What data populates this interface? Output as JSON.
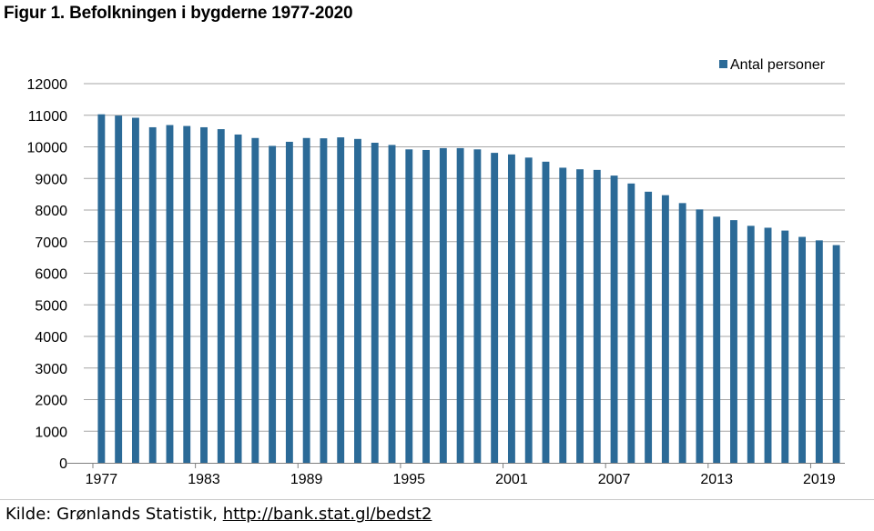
{
  "figure": {
    "title": "Figur 1. Befolkningen i bygderne 1977-2020"
  },
  "source": {
    "prefix": "Kilde: Grønlands Statistik, ",
    "link_text": "http://bank.stat.gl/bedst2"
  },
  "chart_data": {
    "type": "bar",
    "title": "Figur 1. Befolkningen i bygderne 1977-2020",
    "xlabel": "",
    "ylabel": "",
    "ylim": [
      0,
      12000
    ],
    "yticks": [
      0,
      1000,
      2000,
      3000,
      4000,
      5000,
      6000,
      7000,
      8000,
      9000,
      10000,
      11000,
      12000
    ],
    "xtick_labels": [
      "1977",
      "1983",
      "1989",
      "1995",
      "2001",
      "2007",
      "2013",
      "2019"
    ],
    "grid": true,
    "legend_position": "top-right",
    "color": "#2b6a97",
    "series": [
      {
        "name": "Antal personer",
        "values": [
          11030,
          10990,
          10920,
          10620,
          10690,
          10660,
          10620,
          10560,
          10390,
          10280,
          10030,
          10160,
          10280,
          10270,
          10300,
          10250,
          10130,
          10060,
          9920,
          9900,
          9960,
          9960,
          9920,
          9810,
          9760,
          9660,
          9530,
          9340,
          9290,
          9270,
          9090,
          8840,
          8580,
          8470,
          8220,
          8020,
          7790,
          7680,
          7500,
          7440,
          7350,
          7150,
          7040,
          6890
        ]
      }
    ],
    "categories": [
      "1977",
      "1978",
      "1979",
      "1980",
      "1981",
      "1982",
      "1983",
      "1984",
      "1985",
      "1986",
      "1987",
      "1988",
      "1989",
      "1990",
      "1991",
      "1992",
      "1993",
      "1994",
      "1995",
      "1996",
      "1997",
      "1998",
      "1999",
      "2000",
      "2001",
      "2002",
      "2003",
      "2004",
      "2005",
      "2006",
      "2007",
      "2008",
      "2009",
      "2010",
      "2011",
      "2012",
      "2013",
      "2014",
      "2015",
      "2016",
      "2017",
      "2018",
      "2019",
      "2020"
    ]
  }
}
